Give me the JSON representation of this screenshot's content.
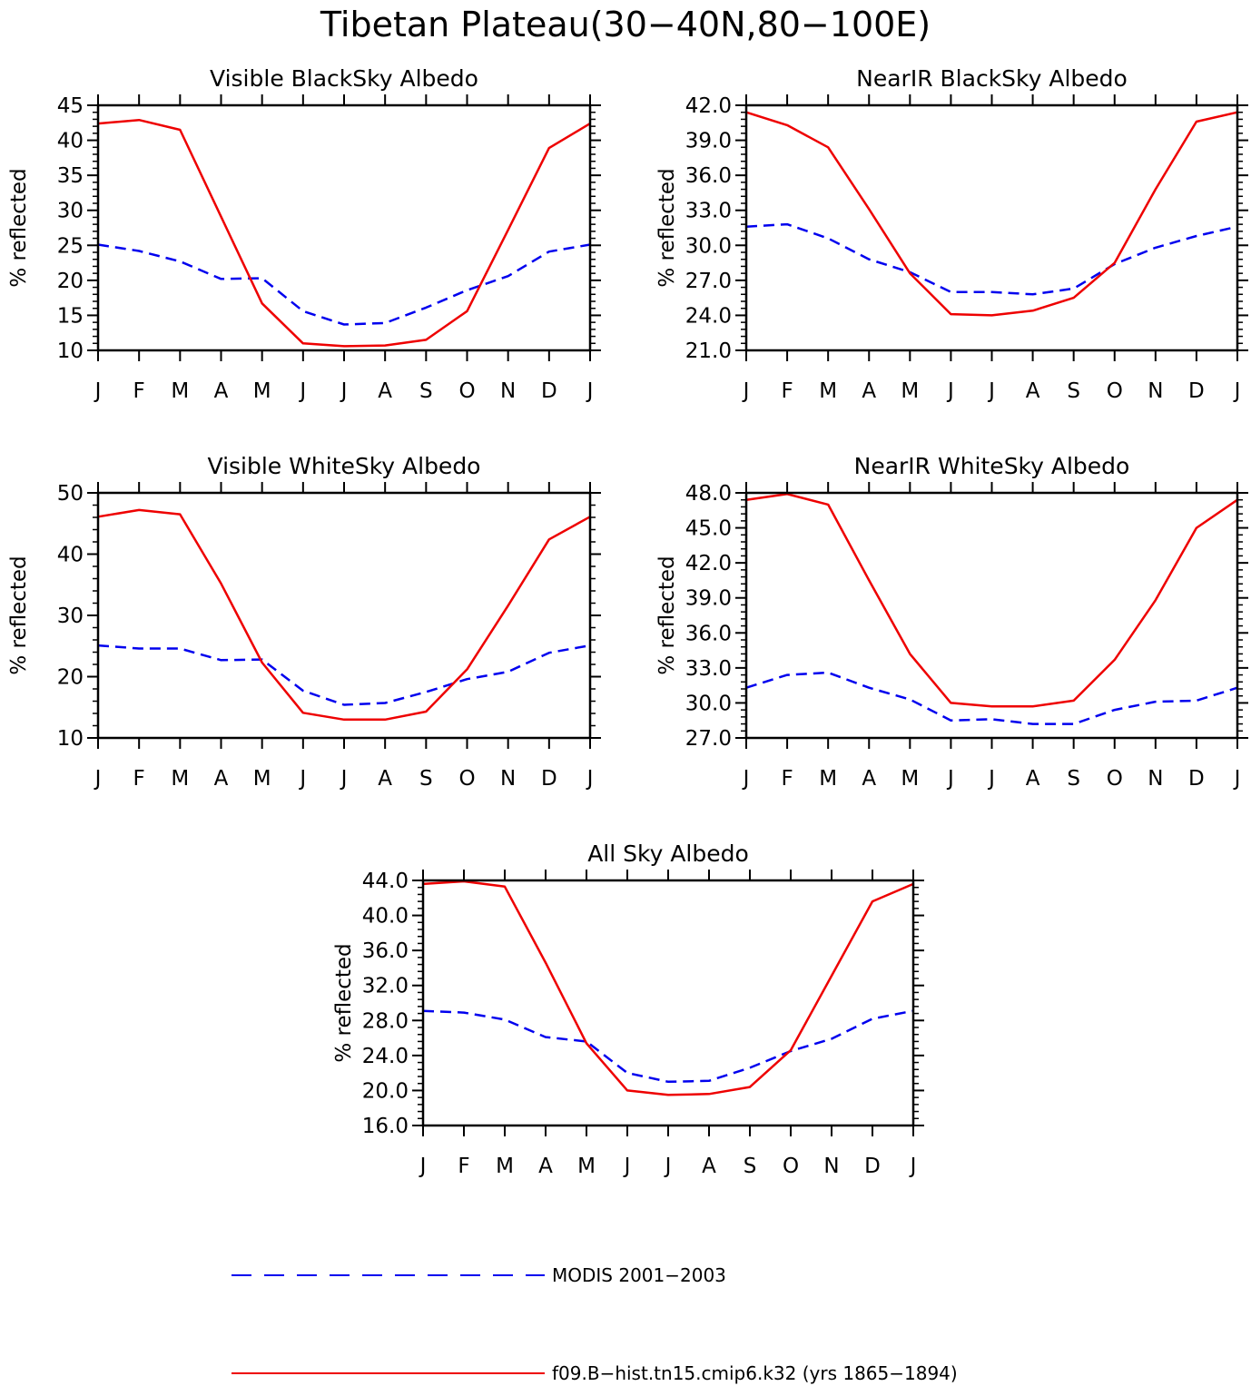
{
  "figure": {
    "title": "Tibetan Plateau(30−40N,80−100E)"
  },
  "legend": {
    "items": [
      {
        "label": "MODIS 2001−2003",
        "color": "#0000ee",
        "dash": true
      },
      {
        "label": "f09.B−hist.tn15.cmip6.k32 (yrs 1865−1894)",
        "color": "#ee0000",
        "dash": false
      }
    ]
  },
  "chart_data": [
    {
      "type": "line",
      "title": "Visible BlackSky Albedo",
      "ylabel": "% reflected",
      "xlabel": "",
      "categories": [
        "J",
        "F",
        "M",
        "A",
        "M",
        "J",
        "J",
        "A",
        "S",
        "O",
        "N",
        "D",
        "J"
      ],
      "ylim": [
        10,
        45
      ],
      "yticks": [
        "10",
        "15",
        "20",
        "25",
        "30",
        "35",
        "40",
        "45"
      ],
      "series": [
        {
          "name": "MODIS 2001−2003",
          "color": "#0000ee",
          "dash": true,
          "values": [
            25.1,
            24.2,
            22.7,
            20.2,
            20.3,
            15.6,
            13.7,
            13.9,
            16.1,
            18.6,
            20.6,
            24.1,
            25.1
          ]
        },
        {
          "name": "f09.B−hist.tn15.cmip6.k32 (yrs 1865−1894)",
          "color": "#ee0000",
          "dash": false,
          "values": [
            42.4,
            42.9,
            41.5,
            29.1,
            16.7,
            11.0,
            10.6,
            10.7,
            11.5,
            15.6,
            27.2,
            38.9,
            42.4
          ]
        }
      ]
    },
    {
      "type": "line",
      "title": "NearIR BlackSky Albedo",
      "ylabel": "% reflected",
      "xlabel": "",
      "categories": [
        "J",
        "F",
        "M",
        "A",
        "M",
        "J",
        "J",
        "A",
        "S",
        "O",
        "N",
        "D",
        "J"
      ],
      "ylim": [
        21,
        42
      ],
      "yticks": [
        "21.0",
        "24.0",
        "27.0",
        "30.0",
        "33.0",
        "36.0",
        "39.0",
        "42.0"
      ],
      "series": [
        {
          "name": "MODIS 2001−2003",
          "color": "#0000ee",
          "dash": true,
          "values": [
            31.6,
            31.8,
            30.6,
            28.8,
            27.7,
            26.0,
            26.0,
            25.8,
            26.3,
            28.4,
            29.8,
            30.8,
            31.6
          ]
        },
        {
          "name": "f09.B−hist.tn15.cmip6.k32 (yrs 1865−1894)",
          "color": "#ee0000",
          "dash": false,
          "values": [
            41.4,
            40.3,
            38.4,
            33.1,
            27.6,
            24.1,
            24.0,
            24.4,
            25.5,
            28.5,
            34.8,
            40.6,
            41.4
          ]
        }
      ]
    },
    {
      "type": "line",
      "title": "Visible WhiteSky Albedo",
      "ylabel": "% reflected",
      "xlabel": "",
      "categories": [
        "J",
        "F",
        "M",
        "A",
        "M",
        "J",
        "J",
        "A",
        "S",
        "O",
        "N",
        "D",
        "J"
      ],
      "ylim": [
        10,
        50
      ],
      "yticks": [
        "10",
        "20",
        "30",
        "40",
        "50"
      ],
      "series": [
        {
          "name": "MODIS 2001−2003",
          "color": "#0000ee",
          "dash": true,
          "values": [
            25.1,
            24.6,
            24.6,
            22.7,
            22.8,
            17.7,
            15.4,
            15.7,
            17.5,
            19.6,
            20.8,
            23.9,
            25.1
          ]
        },
        {
          "name": "f09.B−hist.tn15.cmip6.k32 (yrs 1865−1894)",
          "color": "#ee0000",
          "dash": false,
          "values": [
            46.1,
            47.2,
            46.5,
            35.2,
            22.3,
            14.1,
            13.0,
            13.0,
            14.3,
            21.2,
            31.6,
            42.4,
            46.1
          ]
        }
      ]
    },
    {
      "type": "line",
      "title": "NearIR WhiteSky Albedo",
      "ylabel": "% reflected",
      "xlabel": "",
      "categories": [
        "J",
        "F",
        "M",
        "A",
        "M",
        "J",
        "J",
        "A",
        "S",
        "O",
        "N",
        "D",
        "J"
      ],
      "ylim": [
        27,
        48
      ],
      "yticks": [
        "27.0",
        "30.0",
        "33.0",
        "36.0",
        "39.0",
        "42.0",
        "45.0",
        "48.0"
      ],
      "series": [
        {
          "name": "MODIS 2001−2003",
          "color": "#0000ee",
          "dash": true,
          "values": [
            31.3,
            32.4,
            32.6,
            31.3,
            30.3,
            28.5,
            28.6,
            28.2,
            28.2,
            29.4,
            30.1,
            30.2,
            31.3
          ]
        },
        {
          "name": "f09.B−hist.tn15.cmip6.k32 (yrs 1865−1894)",
          "color": "#ee0000",
          "dash": false,
          "values": [
            47.4,
            47.9,
            47.0,
            40.5,
            34.2,
            30.0,
            29.7,
            29.7,
            30.2,
            33.7,
            38.8,
            45.0,
            47.4
          ]
        }
      ]
    },
    {
      "type": "line",
      "title": "All Sky Albedo",
      "ylabel": "% reflected",
      "xlabel": "",
      "categories": [
        "J",
        "F",
        "M",
        "A",
        "M",
        "J",
        "J",
        "A",
        "S",
        "O",
        "N",
        "D",
        "J"
      ],
      "ylim": [
        16,
        44
      ],
      "yticks": [
        "16.0",
        "20.0",
        "24.0",
        "28.0",
        "32.0",
        "36.0",
        "40.0",
        "44.0"
      ],
      "series": [
        {
          "name": "MODIS 2001−2003",
          "color": "#0000ee",
          "dash": true,
          "values": [
            29.1,
            28.9,
            28.1,
            26.1,
            25.6,
            22.0,
            21.0,
            21.1,
            22.6,
            24.5,
            25.9,
            28.2,
            29.1
          ]
        },
        {
          "name": "f09.B−hist.tn15.cmip6.k32 (yrs 1865−1894)",
          "color": "#ee0000",
          "dash": false,
          "values": [
            43.6,
            43.9,
            43.3,
            34.6,
            25.4,
            20.0,
            19.5,
            19.6,
            20.4,
            24.6,
            33.1,
            41.6,
            43.6
          ]
        }
      ]
    }
  ]
}
